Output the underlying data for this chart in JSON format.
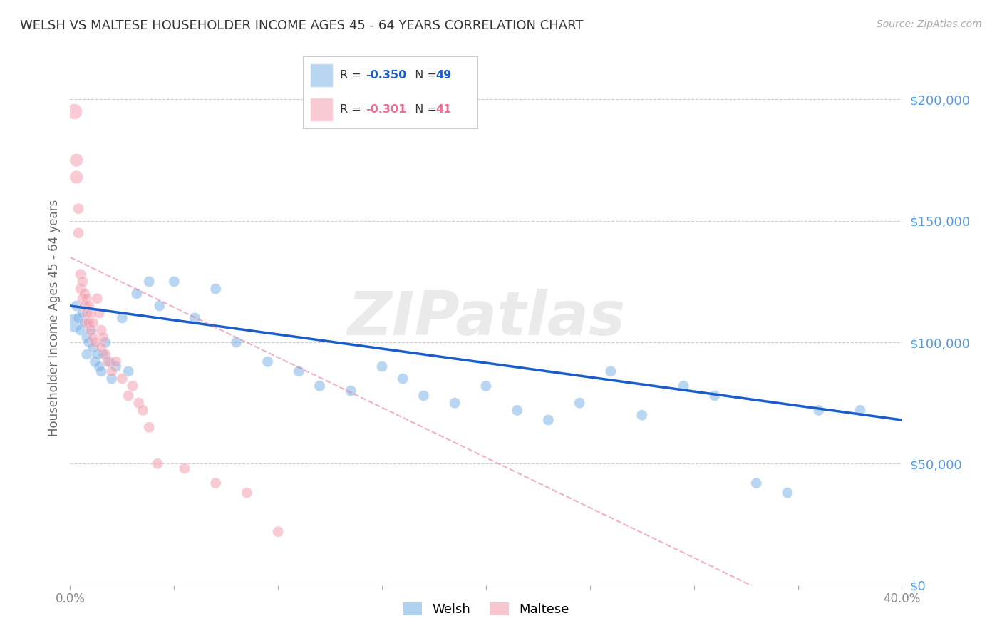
{
  "title": "WELSH VS MALTESE HOUSEHOLDER INCOME AGES 45 - 64 YEARS CORRELATION CHART",
  "source": "Source: ZipAtlas.com",
  "ylabel": "Householder Income Ages 45 - 64 years",
  "welsh_R": -0.35,
  "welsh_N": 49,
  "maltese_R": -0.301,
  "maltese_N": 41,
  "welsh_color": "#7EB3E8",
  "maltese_color": "#F4A0B0",
  "welsh_line_color": "#1A5DC8",
  "maltese_line_color": "#E87090",
  "background_color": "#FFFFFF",
  "grid_color": "#CCCCCC",
  "right_label_color": "#5599DD",
  "title_color": "#333333",
  "xlim": [
    0.0,
    0.4
  ],
  "ylim": [
    0,
    220000
  ],
  "welsh_x": [
    0.002,
    0.003,
    0.004,
    0.005,
    0.006,
    0.007,
    0.008,
    0.008,
    0.009,
    0.01,
    0.011,
    0.012,
    0.013,
    0.014,
    0.015,
    0.016,
    0.017,
    0.019,
    0.02,
    0.022,
    0.025,
    0.028,
    0.032,
    0.038,
    0.043,
    0.05,
    0.06,
    0.07,
    0.08,
    0.095,
    0.11,
    0.12,
    0.135,
    0.15,
    0.16,
    0.17,
    0.185,
    0.2,
    0.215,
    0.23,
    0.245,
    0.26,
    0.275,
    0.295,
    0.31,
    0.33,
    0.345,
    0.36,
    0.38
  ],
  "welsh_y": [
    108000,
    115000,
    110000,
    105000,
    112000,
    108000,
    102000,
    95000,
    100000,
    105000,
    98000,
    92000,
    95000,
    90000,
    88000,
    95000,
    100000,
    92000,
    85000,
    90000,
    110000,
    88000,
    120000,
    125000,
    115000,
    125000,
    110000,
    122000,
    100000,
    92000,
    88000,
    82000,
    80000,
    90000,
    85000,
    78000,
    75000,
    82000,
    72000,
    68000,
    75000,
    88000,
    70000,
    82000,
    78000,
    42000,
    38000,
    72000,
    72000
  ],
  "maltese_x": [
    0.002,
    0.003,
    0.003,
    0.004,
    0.004,
    0.005,
    0.005,
    0.006,
    0.006,
    0.007,
    0.007,
    0.008,
    0.008,
    0.008,
    0.009,
    0.009,
    0.01,
    0.01,
    0.011,
    0.011,
    0.012,
    0.013,
    0.014,
    0.015,
    0.015,
    0.016,
    0.017,
    0.018,
    0.02,
    0.022,
    0.025,
    0.028,
    0.03,
    0.033,
    0.035,
    0.038,
    0.042,
    0.055,
    0.07,
    0.085,
    0.1
  ],
  "maltese_y": [
    195000,
    175000,
    168000,
    155000,
    145000,
    128000,
    122000,
    125000,
    118000,
    120000,
    115000,
    118000,
    112000,
    108000,
    115000,
    108000,
    112000,
    105000,
    108000,
    102000,
    100000,
    118000,
    112000,
    105000,
    98000,
    102000,
    95000,
    92000,
    88000,
    92000,
    85000,
    78000,
    82000,
    75000,
    72000,
    65000,
    50000,
    48000,
    42000,
    38000,
    22000
  ],
  "watermark": "ZIPatlas",
  "welsh_sizes": [
    350,
    120,
    120,
    120,
    120,
    120,
    120,
    120,
    120,
    120,
    120,
    120,
    120,
    120,
    120,
    120,
    120,
    120,
    120,
    120,
    120,
    120,
    120,
    120,
    120,
    120,
    120,
    120,
    120,
    120,
    120,
    120,
    120,
    120,
    120,
    120,
    120,
    120,
    120,
    120,
    120,
    120,
    120,
    120,
    120,
    120,
    120,
    120,
    120
  ],
  "maltese_sizes": [
    250,
    180,
    180,
    120,
    120,
    120,
    120,
    120,
    120,
    120,
    120,
    120,
    120,
    120,
    120,
    120,
    120,
    120,
    120,
    120,
    120,
    120,
    120,
    120,
    120,
    120,
    120,
    120,
    120,
    120,
    120,
    120,
    120,
    120,
    120,
    120,
    120,
    120,
    120,
    120,
    120
  ],
  "grid_yticks": [
    0,
    50000,
    100000,
    150000,
    200000
  ],
  "xtick_labels_show": [
    0.0,
    0.4
  ],
  "xtick_positions": [
    0.0,
    0.05,
    0.1,
    0.15,
    0.2,
    0.25,
    0.3,
    0.35,
    0.4
  ]
}
